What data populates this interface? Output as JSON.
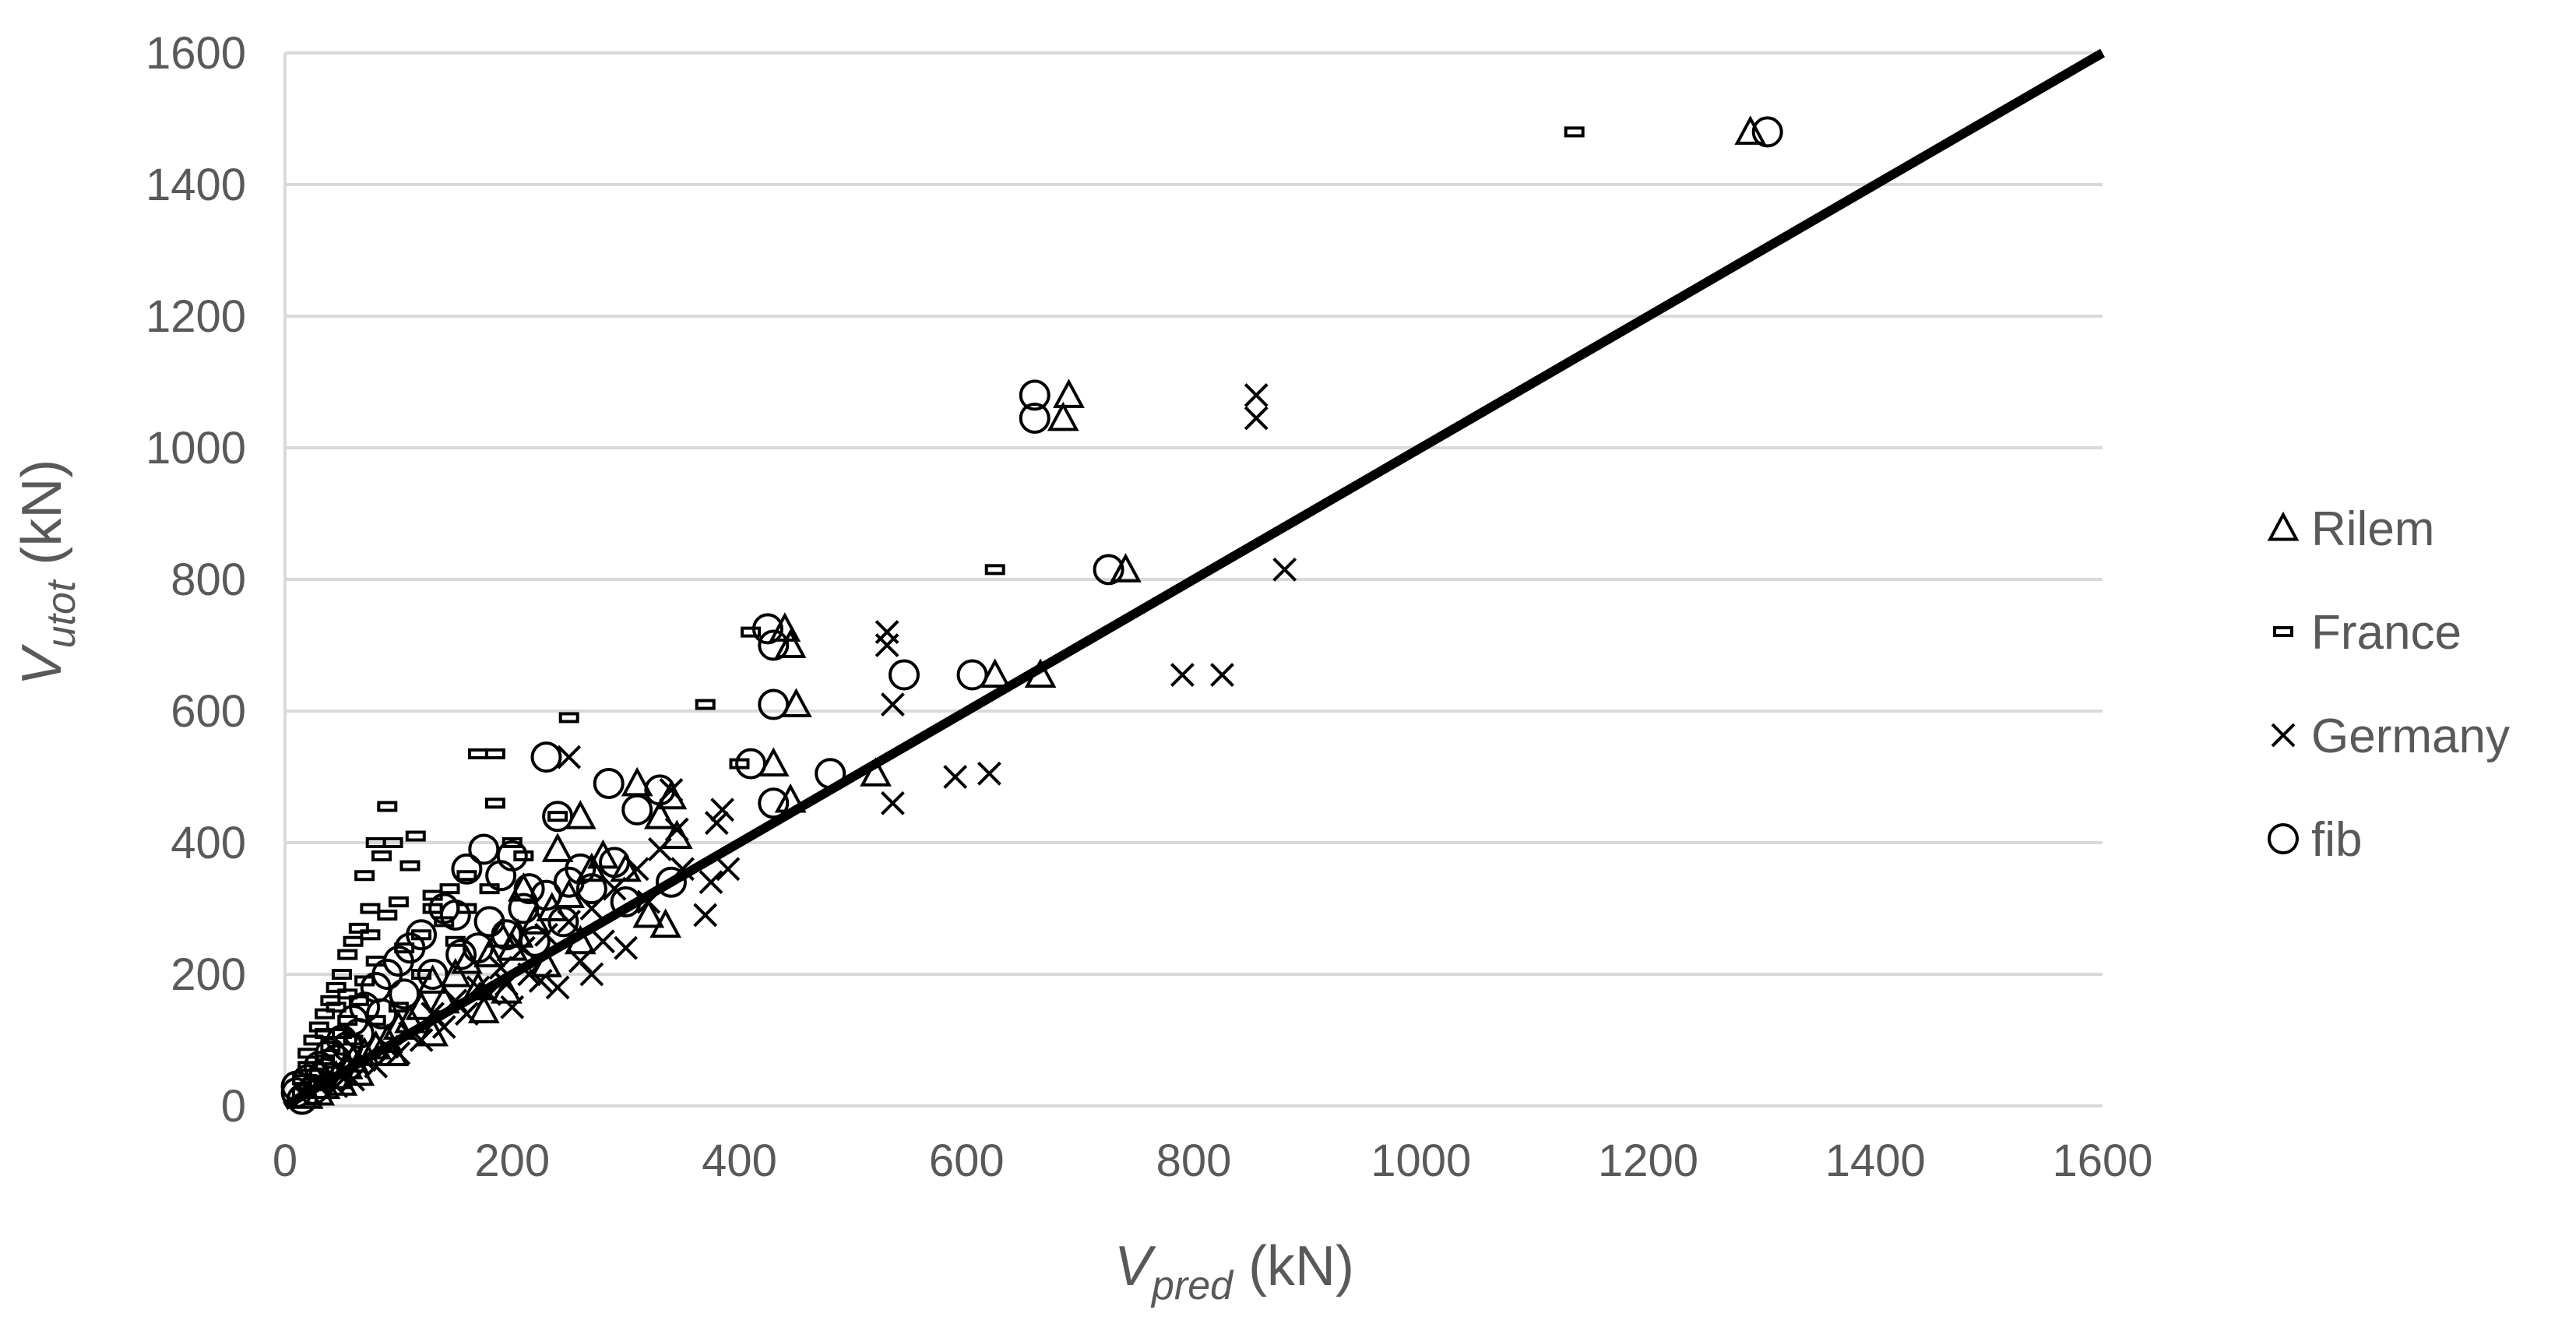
{
  "chart_data": {
    "type": "scatter",
    "xlabel": {
      "main": "V",
      "sub": "pred",
      "unit": " (kN)"
    },
    "ylabel": {
      "main": "V",
      "sub": "utot",
      "unit": " (kN)"
    },
    "xlim": [
      0,
      1600
    ],
    "ylim": [
      0,
      1600
    ],
    "x_ticks": [
      "0",
      "200",
      "400",
      "600",
      "800",
      "1000",
      "1200",
      "1400",
      "1600"
    ],
    "y_ticks": [
      "0",
      "200",
      "400",
      "600",
      "800",
      "1000",
      "1200",
      "1400",
      "1600"
    ],
    "grid": "horizontal",
    "legend_position": "right",
    "reference_line": {
      "x": [
        0,
        1600
      ],
      "y": [
        0,
        1600
      ]
    },
    "series": [
      {
        "name": "Rilem",
        "marker": "triangle",
        "points": [
          [
            1290,
            1480
          ],
          [
            690,
            1080
          ],
          [
            685,
            1045
          ],
          [
            740,
            815
          ],
          [
            440,
            725
          ],
          [
            445,
            700
          ],
          [
            450,
            610
          ],
          [
            625,
            655
          ],
          [
            665,
            655
          ],
          [
            340,
            470
          ],
          [
            330,
            440
          ],
          [
            345,
            410
          ],
          [
            310,
            490
          ],
          [
            260,
            440
          ],
          [
            280,
            380
          ],
          [
            210,
            330
          ],
          [
            235,
            300
          ],
          [
            190,
            260
          ],
          [
            160,
            220
          ],
          [
            130,
            190
          ],
          [
            120,
            150
          ],
          [
            100,
            120
          ],
          [
            90,
            100
          ],
          [
            70,
            80
          ],
          [
            55,
            60
          ],
          [
            45,
            45
          ],
          [
            35,
            30
          ],
          [
            30,
            20
          ],
          [
            20,
            15
          ],
          [
            150,
            200
          ],
          [
            180,
            230
          ],
          [
            200,
            240
          ],
          [
            220,
            280
          ],
          [
            250,
            320
          ],
          [
            170,
            180
          ],
          [
            140,
            160
          ],
          [
            110,
            130
          ],
          [
            80,
            90
          ],
          [
            60,
            70
          ],
          [
            430,
            520
          ],
          [
            445,
            465
          ],
          [
            320,
            290
          ],
          [
            300,
            360
          ],
          [
            230,
            215
          ],
          [
            260,
            250
          ],
          [
            195,
            175
          ],
          [
            175,
            145
          ],
          [
            130,
            110
          ],
          [
            95,
            80
          ],
          [
            65,
            50
          ],
          [
            50,
            35
          ],
          [
            520,
            505
          ],
          [
            335,
            275
          ],
          [
            270,
            360
          ],
          [
            240,
            390
          ],
          [
            205,
            260
          ]
        ]
      },
      {
        "name": "France",
        "marker": "dash",
        "points": [
          [
            1135,
            1480
          ],
          [
            625,
            815
          ],
          [
            370,
            610
          ],
          [
            410,
            720
          ],
          [
            250,
            590
          ],
          [
            170,
            535
          ],
          [
            185,
            535
          ],
          [
            185,
            460
          ],
          [
            90,
            455
          ],
          [
            95,
            400
          ],
          [
            80,
            400
          ],
          [
            70,
            350
          ],
          [
            115,
            410
          ],
          [
            110,
            365
          ],
          [
            75,
            300
          ],
          [
            90,
            290
          ],
          [
            100,
            310
          ],
          [
            65,
            270
          ],
          [
            60,
            250
          ],
          [
            55,
            230
          ],
          [
            50,
            200
          ],
          [
            45,
            180
          ],
          [
            40,
            160
          ],
          [
            35,
            140
          ],
          [
            30,
            120
          ],
          [
            25,
            100
          ],
          [
            20,
            80
          ],
          [
            20,
            60
          ],
          [
            15,
            40
          ],
          [
            15,
            20
          ],
          [
            130,
            300
          ],
          [
            140,
            280
          ],
          [
            120,
            260
          ],
          [
            105,
            240
          ],
          [
            80,
            220
          ],
          [
            70,
            190
          ],
          [
            65,
            160
          ],
          [
            55,
            130
          ],
          [
            50,
            110
          ],
          [
            40,
            90
          ],
          [
            35,
            70
          ],
          [
            30,
            50
          ],
          [
            25,
            35
          ],
          [
            120,
            200
          ],
          [
            150,
            250
          ],
          [
            100,
            150
          ],
          [
            80,
            130
          ],
          [
            60,
            100
          ],
          [
            400,
            520
          ],
          [
            240,
            440
          ],
          [
            200,
            400
          ],
          [
            160,
            350
          ],
          [
            145,
            330
          ],
          [
            130,
            320
          ],
          [
            85,
            380
          ],
          [
            75,
            260
          ],
          [
            55,
            170
          ],
          [
            45,
            150
          ],
          [
            35,
            110
          ],
          [
            210,
            380
          ],
          [
            180,
            330
          ],
          [
            160,
            300
          ]
        ]
      },
      {
        "name": "Germany",
        "marker": "cross",
        "points": [
          [
            855,
            1080
          ],
          [
            855,
            1045
          ],
          [
            880,
            815
          ],
          [
            530,
            720
          ],
          [
            530,
            700
          ],
          [
            535,
            610
          ],
          [
            790,
            655
          ],
          [
            825,
            655
          ],
          [
            590,
            500
          ],
          [
            620,
            505
          ],
          [
            535,
            460
          ],
          [
            370,
            290
          ],
          [
            390,
            360
          ],
          [
            380,
            430
          ],
          [
            385,
            450
          ],
          [
            340,
            480
          ],
          [
            330,
            390
          ],
          [
            310,
            360
          ],
          [
            290,
            330
          ],
          [
            270,
            300
          ],
          [
            250,
            280
          ],
          [
            230,
            260
          ],
          [
            210,
            240
          ],
          [
            190,
            210
          ],
          [
            170,
            180
          ],
          [
            150,
            160
          ],
          [
            130,
            140
          ],
          [
            110,
            110
          ],
          [
            90,
            90
          ],
          [
            70,
            70
          ],
          [
            50,
            50
          ],
          [
            40,
            40
          ],
          [
            30,
            30
          ],
          [
            270,
            200
          ],
          [
            300,
            240
          ],
          [
            240,
            180
          ],
          [
            200,
            150
          ],
          [
            350,
            360
          ],
          [
            320,
            310
          ],
          [
            250,
            530
          ],
          [
            280,
            250
          ],
          [
            180,
            170
          ],
          [
            160,
            140
          ],
          [
            140,
            120
          ],
          [
            120,
            100
          ],
          [
            100,
            80
          ],
          [
            80,
            60
          ],
          [
            60,
            40
          ],
          [
            45,
            30
          ],
          [
            225,
            190
          ],
          [
            260,
            220
          ],
          [
            345,
            420
          ],
          [
            375,
            340
          ],
          [
            215,
            200
          ],
          [
            195,
            185
          ]
        ]
      },
      {
        "name": "fib",
        "marker": "circle",
        "points": [
          [
            1305,
            1480
          ],
          [
            660,
            1080
          ],
          [
            660,
            1045
          ],
          [
            725,
            815
          ],
          [
            425,
            725
          ],
          [
            430,
            700
          ],
          [
            430,
            610
          ],
          [
            545,
            655
          ],
          [
            605,
            655
          ],
          [
            410,
            520
          ],
          [
            430,
            460
          ],
          [
            480,
            505
          ],
          [
            230,
            530
          ],
          [
            240,
            440
          ],
          [
            285,
            490
          ],
          [
            330,
            480
          ],
          [
            310,
            450
          ],
          [
            160,
            360
          ],
          [
            175,
            390
          ],
          [
            200,
            380
          ],
          [
            190,
            350
          ],
          [
            210,
            300
          ],
          [
            230,
            320
          ],
          [
            250,
            340
          ],
          [
            270,
            330
          ],
          [
            140,
            300
          ],
          [
            150,
            290
          ],
          [
            120,
            260
          ],
          [
            100,
            220
          ],
          [
            110,
            240
          ],
          [
            90,
            200
          ],
          [
            80,
            180
          ],
          [
            70,
            150
          ],
          [
            60,
            130
          ],
          [
            50,
            100
          ],
          [
            40,
            80
          ],
          [
            30,
            60
          ],
          [
            20,
            40
          ],
          [
            10,
            30
          ],
          [
            10,
            20
          ],
          [
            15,
            10
          ],
          [
            170,
            240
          ],
          [
            130,
            200
          ],
          [
            245,
            280
          ],
          [
            260,
            360
          ],
          [
            290,
            370
          ],
          [
            220,
            250
          ],
          [
            180,
            280
          ],
          [
            155,
            230
          ],
          [
            105,
            170
          ],
          [
            85,
            140
          ],
          [
            65,
            110
          ],
          [
            55,
            90
          ],
          [
            45,
            70
          ],
          [
            35,
            50
          ],
          [
            25,
            25
          ],
          [
            300,
            310
          ],
          [
            340,
            340
          ],
          [
            215,
            330
          ],
          [
            195,
            260
          ]
        ]
      }
    ]
  },
  "colors": {
    "marker": "#000000",
    "text": "#595959",
    "grid": "#d9d9d9",
    "line": "#000000"
  }
}
